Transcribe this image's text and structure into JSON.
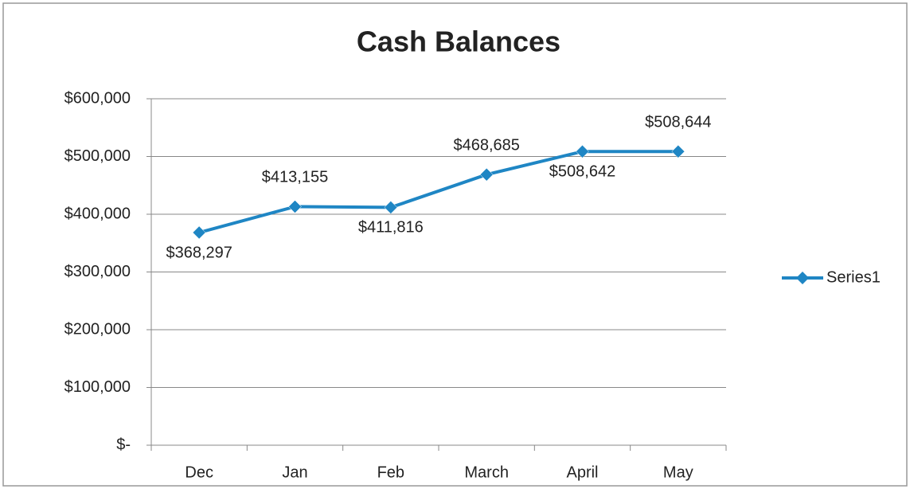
{
  "chart_data": {
    "type": "line",
    "title": "Cash Balances",
    "categories": [
      "Dec",
      "Jan",
      "Feb",
      "March",
      "April",
      "May"
    ],
    "series": [
      {
        "name": "Series1",
        "color": "#1f86c4",
        "values": [
          368297,
          413155,
          411816,
          468685,
          508642,
          508644
        ],
        "value_labels": [
          "$368,297",
          "$413,155",
          "$411,816",
          "$468,685",
          "$508,642",
          "$508,644"
        ]
      }
    ],
    "ylim": [
      0,
      600000
    ],
    "yticks": [
      {
        "value": 0,
        "label": "$-"
      },
      {
        "value": 100000,
        "label": "$100,000"
      },
      {
        "value": 200000,
        "label": "$200,000"
      },
      {
        "value": 300000,
        "label": "$300,000"
      },
      {
        "value": 400000,
        "label": "$400,000"
      },
      {
        "value": 500000,
        "label": "$500,000"
      },
      {
        "value": 600000,
        "label": "$600,000"
      }
    ],
    "grid": true,
    "legend": "right"
  }
}
